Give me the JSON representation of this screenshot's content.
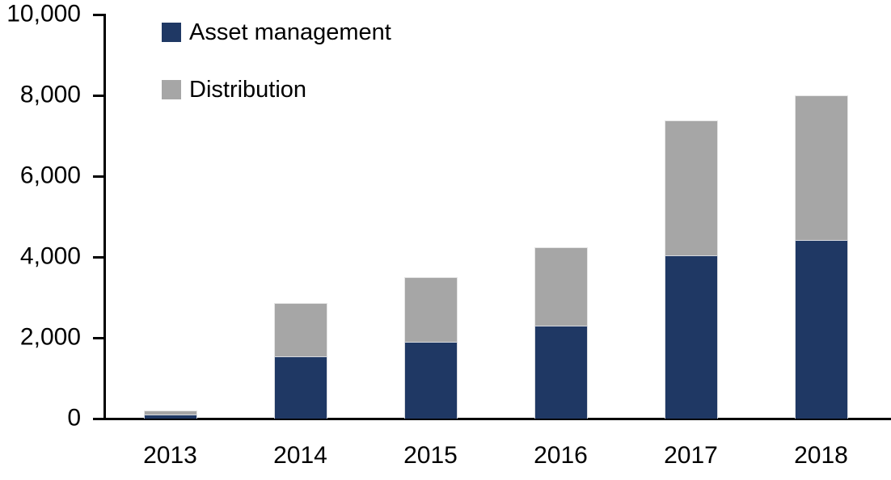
{
  "chart_data": {
    "type": "bar",
    "stacked": true,
    "title": "",
    "xlabel": "",
    "ylabel": "",
    "categories": [
      "2013",
      "2014",
      "2015",
      "2016",
      "2017",
      "2018"
    ],
    "series": [
      {
        "name": "Asset management",
        "color": "#1f3864",
        "values": [
          100,
          1550,
          1900,
          2310,
          4040,
          4420
        ]
      },
      {
        "name": "Distribution",
        "color": "#a6a6a6",
        "values": [
          100,
          1310,
          1600,
          1940,
          3340,
          3580
        ]
      }
    ],
    "ylim": [
      0,
      10000
    ],
    "ytick_interval": 2000,
    "ytick_labels": [
      "0",
      "2,000",
      "4,000",
      "6,000",
      "8,000",
      "10,000"
    ],
    "grid": false,
    "legend_position": "top-left",
    "axis_color": "#000000",
    "background_color": "#ffffff"
  }
}
